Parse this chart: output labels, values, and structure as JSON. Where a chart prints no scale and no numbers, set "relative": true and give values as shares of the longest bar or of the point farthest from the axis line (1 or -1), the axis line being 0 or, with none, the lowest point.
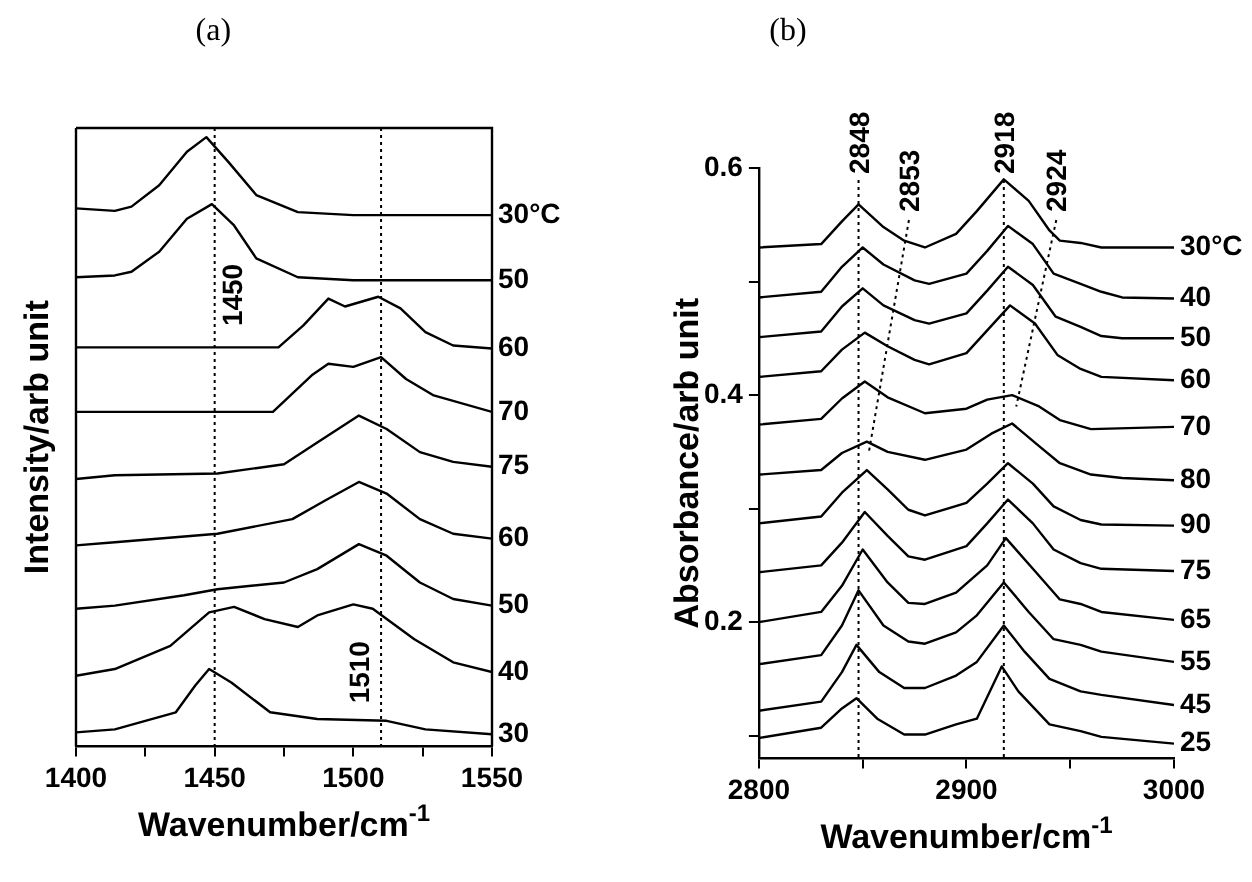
{
  "chart_data": [
    {
      "type": "line",
      "title": "(a)",
      "xlabel": "Wavenumber/cm$^{-1}$",
      "ylabel": "Intensity/arb unit",
      "relative": true,
      "legend": false,
      "marker": "none",
      "line_style": "solid",
      "xlim": [
        1400,
        1550
      ],
      "xticks": [
        1400,
        {
          "value": 1425,
          "label": null
        },
        1450,
        {
          "value": 1475,
          "label": null
        },
        1500,
        {
          "value": 1525,
          "label": null
        },
        1550
      ],
      "ref_lines": [
        {
          "axis": "x",
          "value": 1450,
          "label": "1450",
          "line_style": "dotted"
        },
        {
          "axis": "x",
          "value": 1510,
          "label": "1510",
          "line_style": "dotted"
        }
      ],
      "series": [
        {
          "name": "30°C",
          "color": "#000000",
          "x": [
            1400,
            1414,
            1420,
            1430,
            1440,
            1447,
            1455,
            1465,
            1480,
            1500,
            1550
          ],
          "values": [
            0.883,
            0.879,
            0.886,
            0.921,
            0.976,
            1.0,
            0.959,
            0.905,
            0.877,
            0.872,
            0.872
          ]
        },
        {
          "name": "50",
          "color": "#000000",
          "x": [
            1400,
            1414,
            1420,
            1430,
            1440,
            1449,
            1457,
            1465,
            1480,
            1500,
            1550
          ],
          "values": [
            0.77,
            0.773,
            0.779,
            0.812,
            0.866,
            0.89,
            0.855,
            0.801,
            0.77,
            0.765,
            0.765
          ]
        },
        {
          "name": "60",
          "color": "#000000",
          "x": [
            1400,
            1473,
            1482,
            1491,
            1497,
            1509,
            1517,
            1526,
            1536,
            1550
          ],
          "values": [
            0.655,
            0.655,
            0.691,
            0.735,
            0.722,
            0.738,
            0.719,
            0.68,
            0.658,
            0.653
          ]
        },
        {
          "name": "70",
          "color": "#000000",
          "x": [
            1400,
            1471,
            1485,
            1491,
            1500,
            1510,
            1519,
            1529,
            1550
          ],
          "values": [
            0.549,
            0.549,
            0.609,
            0.628,
            0.623,
            0.639,
            0.603,
            0.576,
            0.549
          ]
        },
        {
          "name": "75",
          "color": "#000000",
          "x": [
            1400,
            1414,
            1451,
            1475,
            1487,
            1502,
            1512,
            1524,
            1536,
            1550
          ],
          "values": [
            0.439,
            0.445,
            0.448,
            0.463,
            0.499,
            0.543,
            0.521,
            0.483,
            0.467,
            0.459
          ]
        },
        {
          "name": "60",
          "color": "#000000",
          "x": [
            1400,
            1414,
            1451,
            1478,
            1490,
            1502,
            1512,
            1524,
            1536,
            1550
          ],
          "values": [
            0.33,
            0.335,
            0.349,
            0.373,
            0.404,
            0.434,
            0.415,
            0.373,
            0.349,
            0.341
          ]
        },
        {
          "name": "50",
          "color": "#000000",
          "x": [
            1400,
            1414,
            1439,
            1451,
            1475,
            1487,
            1502,
            1512,
            1524,
            1536,
            1550
          ],
          "values": [
            0.226,
            0.231,
            0.248,
            0.258,
            0.269,
            0.291,
            0.332,
            0.313,
            0.269,
            0.242,
            0.231
          ]
        },
        {
          "name": "40",
          "color": "#000000",
          "x": [
            1400,
            1414,
            1434,
            1448,
            1457,
            1468,
            1480,
            1487,
            1500,
            1507,
            1522,
            1536,
            1550
          ],
          "values": [
            0.116,
            0.127,
            0.165,
            0.22,
            0.229,
            0.209,
            0.196,
            0.215,
            0.233,
            0.226,
            0.176,
            0.138,
            0.122
          ]
        },
        {
          "name": "30",
          "color": "#000000",
          "x": [
            1400,
            1414,
            1436,
            1443,
            1448,
            1456,
            1470,
            1487,
            1512,
            1526,
            1550
          ],
          "values": [
            0.023,
            0.028,
            0.056,
            0.1,
            0.127,
            0.105,
            0.056,
            0.045,
            0.042,
            0.028,
            0.02
          ]
        }
      ]
    },
    {
      "type": "line",
      "title": "(b)",
      "xlabel": "Wavenumber/cm$^{-1}$",
      "ylabel": "Absorbance/arb unit",
      "legend": false,
      "marker": "none",
      "line_style": "solid",
      "xlim": [
        2800,
        3000
      ],
      "xticks": [
        2800,
        {
          "value": 2850,
          "label": null
        },
        2900,
        {
          "value": 2950,
          "label": null
        },
        3000
      ],
      "ylim": [
        0.08,
        0.6
      ],
      "yticks": [
        {
          "value": 0.1,
          "label": null
        },
        0.2,
        {
          "value": 0.3,
          "label": null
        },
        0.4,
        {
          "value": 0.5,
          "label": null
        },
        0.6
      ],
      "ref_lines": [
        {
          "axis": "x",
          "value": 2848,
          "label": "2848",
          "line_style": "dotted"
        },
        {
          "axis": "x",
          "value": 2918,
          "label": "2918",
          "line_style": "dotted"
        }
      ],
      "annotations": [
        {
          "text": "2853",
          "x": 2853,
          "y": 0.35
        },
        {
          "text": "2924",
          "x": 2924,
          "y": 0.39
        }
      ],
      "series": [
        {
          "name": "30°C",
          "color": "#000000",
          "x": [
            2800,
            2830,
            2840,
            2848,
            2860,
            2870,
            2880,
            2895,
            2905,
            2918,
            2930,
            2940,
            2945,
            2955,
            2965,
            3000
          ],
          "values": [
            0.53,
            0.533,
            0.553,
            0.568,
            0.548,
            0.536,
            0.53,
            0.542,
            0.562,
            0.59,
            0.571,
            0.545,
            0.536,
            0.534,
            0.53,
            0.53
          ]
        },
        {
          "name": "40",
          "color": "#000000",
          "x": [
            2800,
            2830,
            2840,
            2850,
            2860,
            2875,
            2882,
            2900,
            2910,
            2920,
            2932,
            2942,
            2955,
            2965,
            2975,
            3000
          ],
          "values": [
            0.486,
            0.491,
            0.513,
            0.53,
            0.515,
            0.501,
            0.498,
            0.507,
            0.527,
            0.549,
            0.533,
            0.507,
            0.498,
            0.491,
            0.486,
            0.485
          ]
        },
        {
          "name": "50",
          "color": "#000000",
          "x": [
            2800,
            2830,
            2840,
            2850,
            2860,
            2875,
            2882,
            2900,
            2910,
            2920,
            2932,
            2943,
            2955,
            2965,
            2975,
            3000
          ],
          "values": [
            0.451,
            0.456,
            0.478,
            0.494,
            0.479,
            0.466,
            0.463,
            0.472,
            0.492,
            0.513,
            0.497,
            0.469,
            0.46,
            0.452,
            0.45,
            0.45
          ]
        },
        {
          "name": "60",
          "color": "#000000",
          "x": [
            2800,
            2830,
            2840,
            2851,
            2862,
            2875,
            2882,
            2900,
            2910,
            2921,
            2933,
            2944,
            2955,
            2965,
            3000
          ],
          "values": [
            0.416,
            0.421,
            0.44,
            0.455,
            0.443,
            0.431,
            0.427,
            0.437,
            0.457,
            0.479,
            0.463,
            0.435,
            0.423,
            0.416,
            0.413
          ]
        },
        {
          "name": "70",
          "color": "#000000",
          "x": [
            2800,
            2830,
            2840,
            2851,
            2862,
            2880,
            2900,
            2910,
            2922,
            2935,
            2945,
            2960,
            3000
          ],
          "values": [
            0.374,
            0.379,
            0.397,
            0.412,
            0.398,
            0.384,
            0.388,
            0.396,
            0.4,
            0.39,
            0.378,
            0.37,
            0.372
          ]
        },
        {
          "name": "80",
          "color": "#000000",
          "x": [
            2800,
            2830,
            2840,
            2852,
            2862,
            2880,
            2900,
            2912,
            2922,
            2935,
            2945,
            2960,
            2975,
            3000
          ],
          "values": [
            0.33,
            0.334,
            0.349,
            0.359,
            0.35,
            0.343,
            0.352,
            0.366,
            0.375,
            0.355,
            0.34,
            0.33,
            0.327,
            0.325
          ]
        },
        {
          "name": "90",
          "color": "#000000",
          "x": [
            2800,
            2830,
            2840,
            2852,
            2862,
            2872,
            2880,
            2900,
            2910,
            2920,
            2932,
            2942,
            2955,
            2965,
            3000
          ],
          "values": [
            0.287,
            0.293,
            0.314,
            0.334,
            0.317,
            0.299,
            0.294,
            0.305,
            0.322,
            0.34,
            0.322,
            0.302,
            0.29,
            0.286,
            0.285
          ]
        },
        {
          "name": "75",
          "color": "#000000",
          "x": [
            2800,
            2830,
            2840,
            2851,
            2862,
            2872,
            2880,
            2900,
            2910,
            2920,
            2932,
            2942,
            2955,
            2965,
            3000
          ],
          "values": [
            0.244,
            0.25,
            0.27,
            0.297,
            0.276,
            0.258,
            0.255,
            0.267,
            0.287,
            0.308,
            0.287,
            0.264,
            0.252,
            0.247,
            0.245
          ]
        },
        {
          "name": "65",
          "color": "#000000",
          "x": [
            2800,
            2830,
            2840,
            2850,
            2862,
            2872,
            2880,
            2895,
            2910,
            2919,
            2932,
            2945,
            2955,
            2965,
            3000
          ],
          "values": [
            0.2,
            0.209,
            0.232,
            0.264,
            0.235,
            0.217,
            0.216,
            0.226,
            0.25,
            0.274,
            0.247,
            0.22,
            0.216,
            0.209,
            0.202
          ]
        },
        {
          "name": "55",
          "color": "#000000",
          "x": [
            2800,
            2830,
            2840,
            2848,
            2860,
            2872,
            2880,
            2895,
            2905,
            2918,
            2930,
            2942,
            2955,
            2965,
            3000
          ],
          "values": [
            0.163,
            0.171,
            0.197,
            0.228,
            0.197,
            0.183,
            0.181,
            0.191,
            0.206,
            0.235,
            0.209,
            0.185,
            0.18,
            0.174,
            0.165
          ]
        },
        {
          "name": "45",
          "color": "#000000",
          "x": [
            2800,
            2830,
            2840,
            2847,
            2858,
            2870,
            2880,
            2895,
            2905,
            2918,
            2928,
            2940,
            2955,
            2965,
            3000
          ],
          "values": [
            0.122,
            0.13,
            0.156,
            0.18,
            0.156,
            0.142,
            0.142,
            0.153,
            0.165,
            0.197,
            0.174,
            0.15,
            0.139,
            0.136,
            0.127
          ]
        },
        {
          "name": "25",
          "color": "#000000",
          "x": [
            2800,
            2830,
            2840,
            2847,
            2857,
            2870,
            2880,
            2895,
            2905,
            2917,
            2925,
            2940,
            2955,
            2965,
            3000
          ],
          "values": [
            0.098,
            0.107,
            0.124,
            0.133,
            0.115,
            0.101,
            0.101,
            0.11,
            0.115,
            0.161,
            0.139,
            0.11,
            0.104,
            0.099,
            0.093
          ]
        }
      ]
    }
  ]
}
